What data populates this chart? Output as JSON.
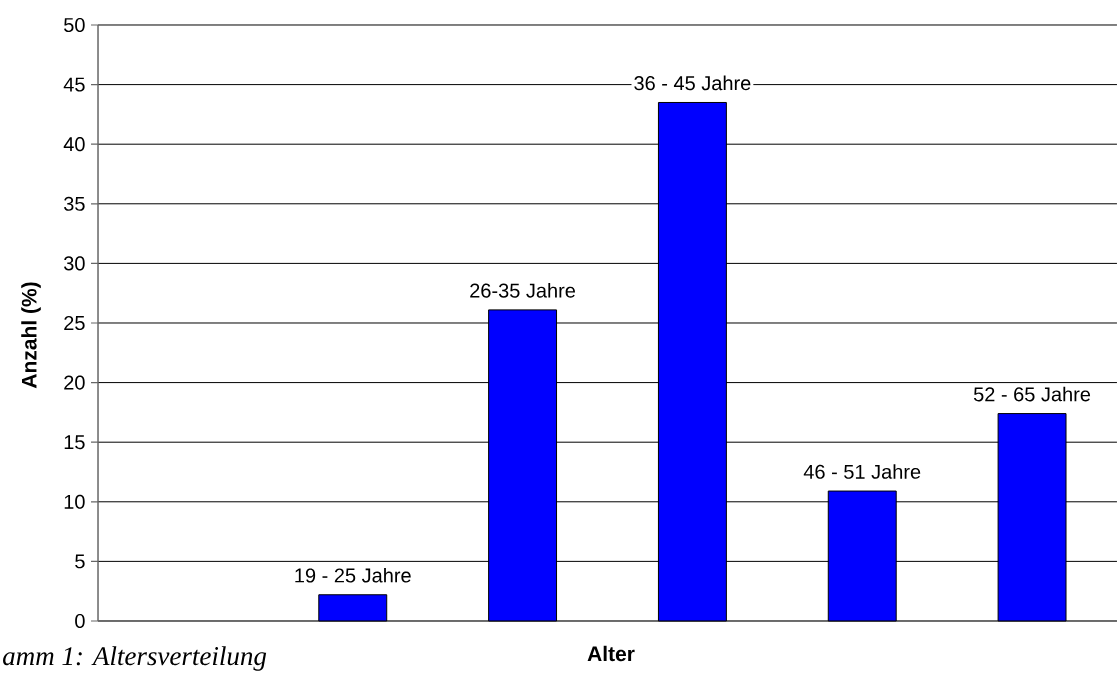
{
  "chart_data": {
    "type": "bar",
    "categories": [
      null,
      "19 - 25 Jahre",
      "26-35 Jahre",
      "36 - 45 Jahre",
      "46 - 51 Jahre",
      "52 - 65 Jahre"
    ],
    "values": [
      null,
      2.2,
      26.1,
      43.5,
      10.9,
      17.4
    ],
    "color": "#0000ff",
    "xlabel": "Alter",
    "ylabel": "Anzahl (%)",
    "ylim": [
      0,
      50
    ],
    "yticks": [
      0,
      5,
      10,
      15,
      20,
      25,
      30,
      35,
      40,
      45,
      50
    ],
    "grid": "y",
    "annotations": [
      "amm 1: Altersverteilung"
    ]
  }
}
